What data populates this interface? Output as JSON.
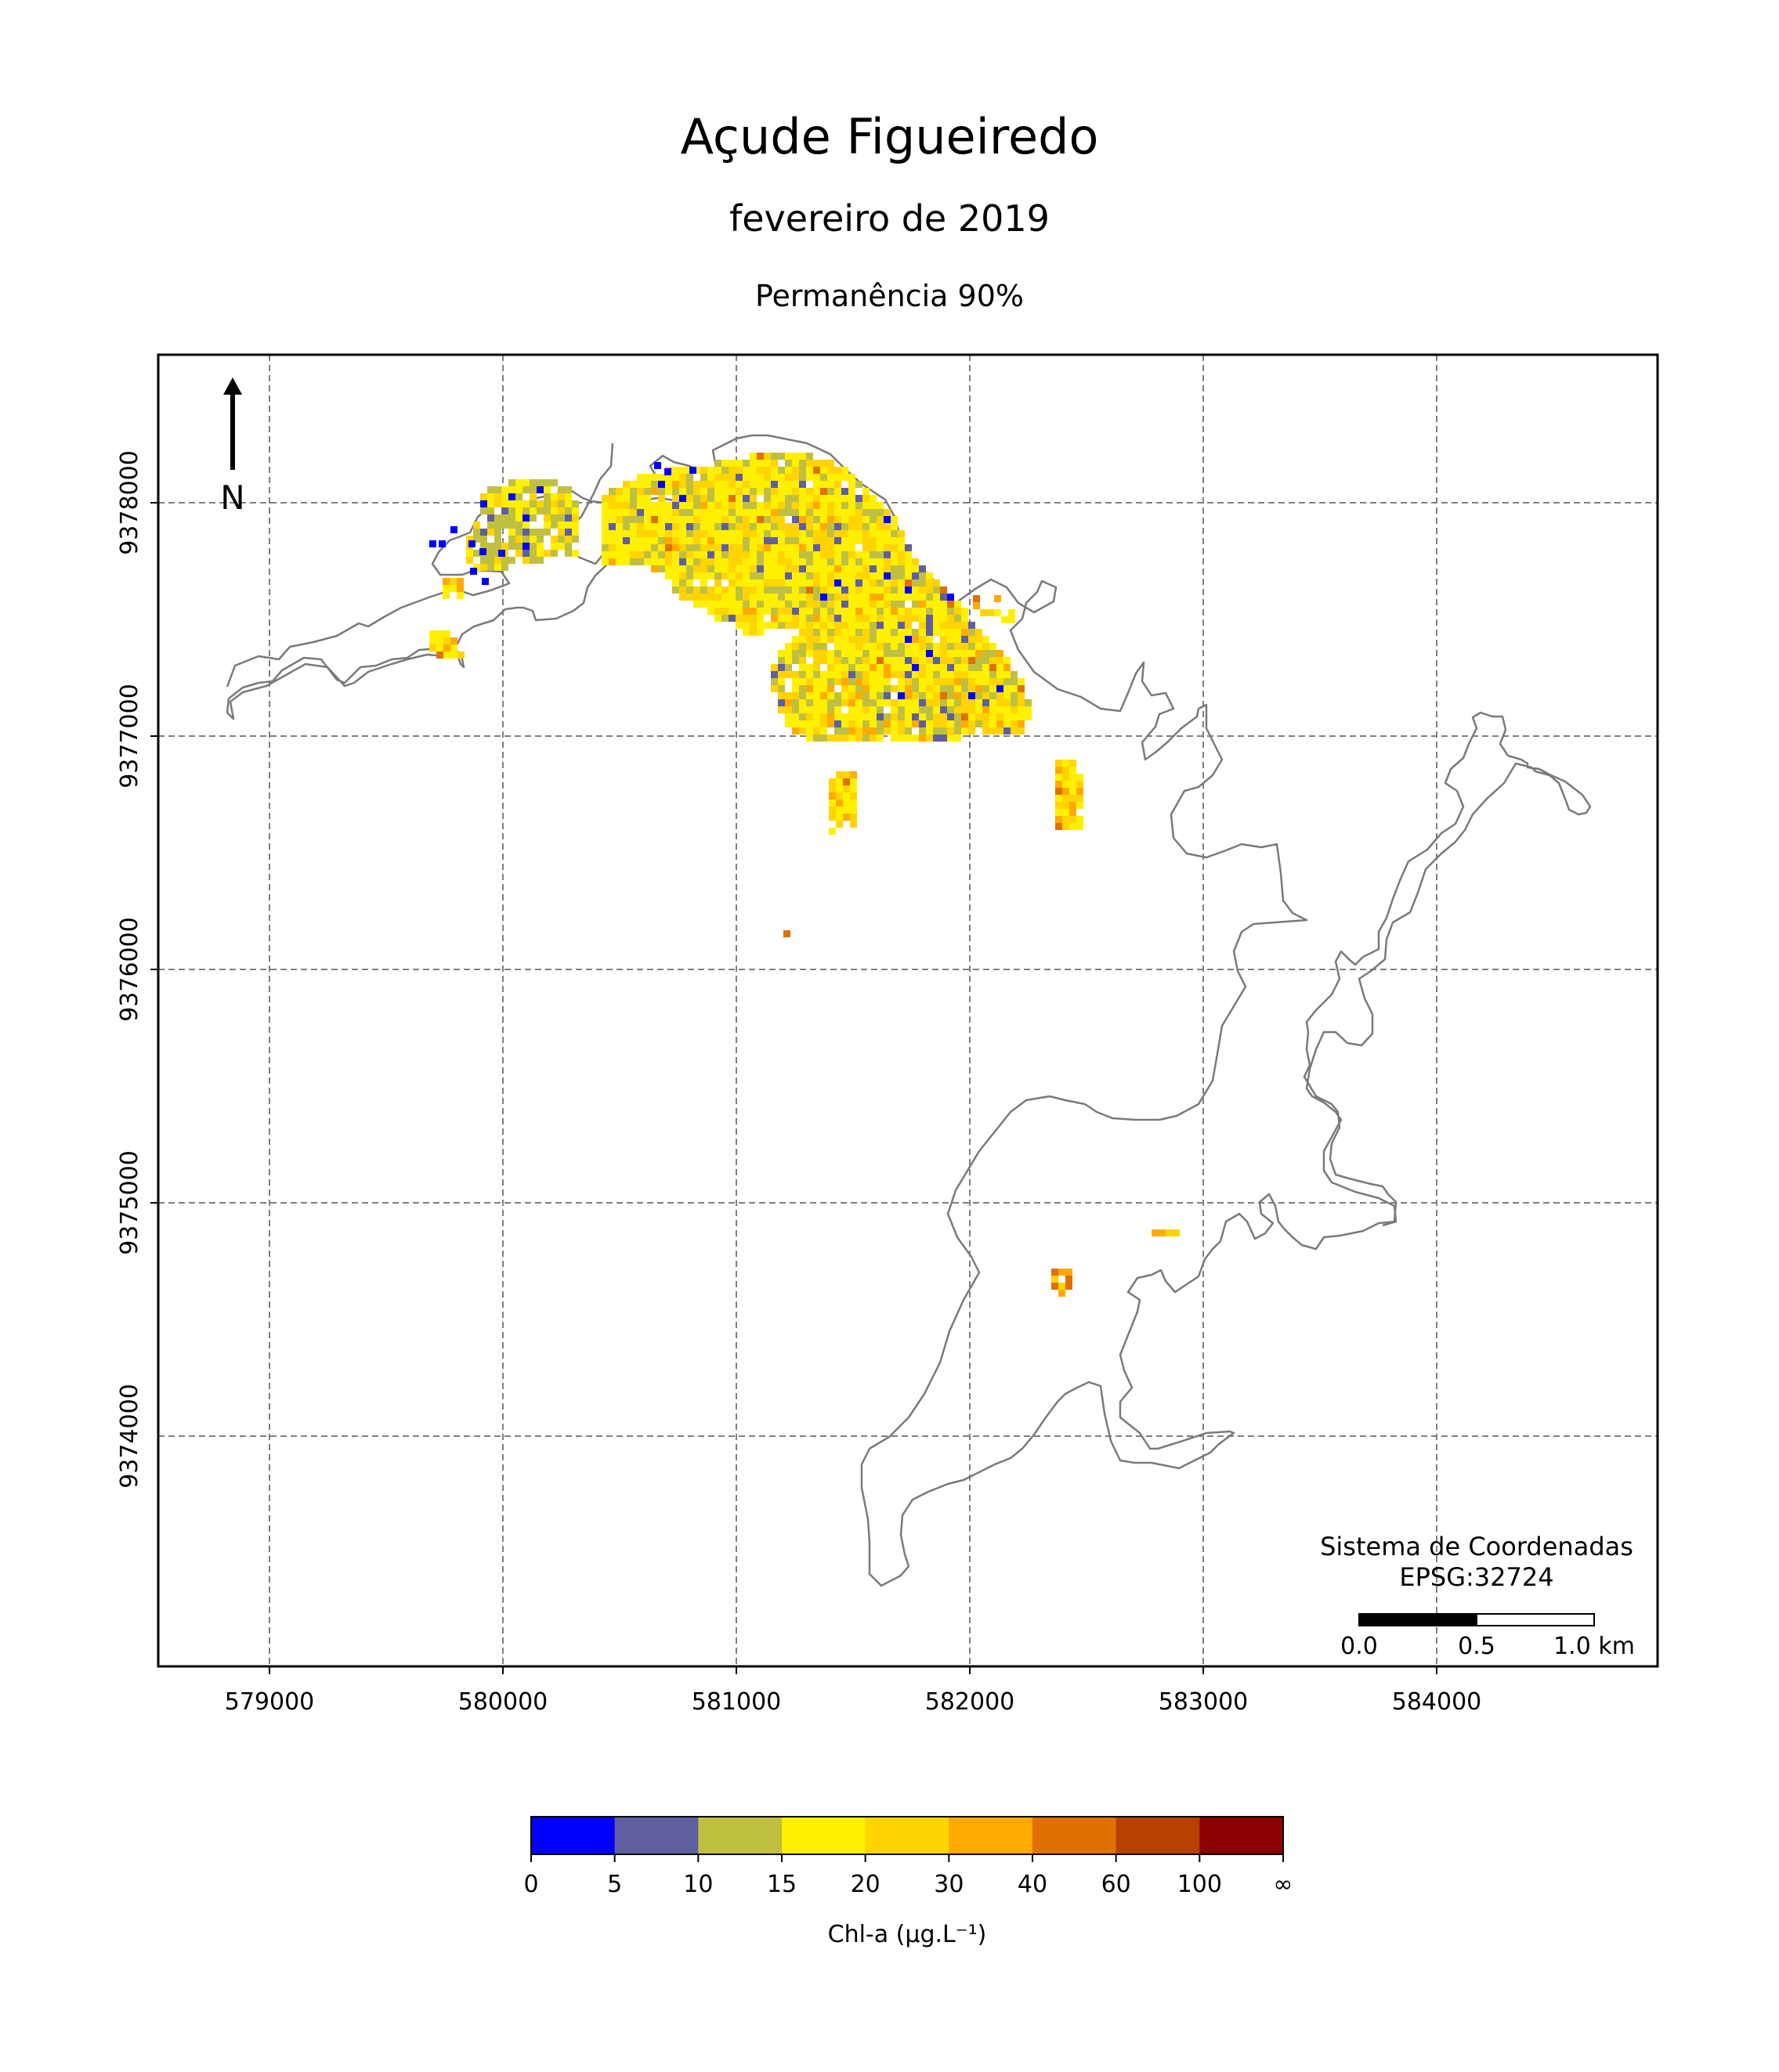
{
  "title": "Açude Figueiredo",
  "subtitle": "fevereiro de 2019",
  "subtitle2": "Permanência 90%",
  "north_label": "N",
  "x_ticks": [
    "579000",
    "580000",
    "581000",
    "582000",
    "583000",
    "584000"
  ],
  "y_ticks": [
    "9378000",
    "9377000",
    "9376000",
    "9375000",
    "9374000"
  ],
  "crs_line1": "Sistema de Coordenadas",
  "crs_line2": "EPSG:32724",
  "scalebar_labels": [
    "0.0",
    "0.5",
    "1.0 km"
  ],
  "colorbar": {
    "label": "Chl-a (μg.L⁻¹)",
    "ticks": [
      "0",
      "5",
      "10",
      "15",
      "20",
      "30",
      "40",
      "60",
      "100",
      "∞"
    ],
    "colors": [
      "#0000ff",
      "#5f5f9f",
      "#c0c040",
      "#fff000",
      "#ffd400",
      "#ffaa00",
      "#e07000",
      "#b84000",
      "#8b0000"
    ]
  },
  "colors": {
    "grid": "#808080",
    "outline": "#7a7a7a",
    "yellow": "#fff000",
    "gold": "#ffd400",
    "olive": "#c0c040",
    "purple": "#5f5f9f",
    "blue": "#0000ff",
    "orange": "#ffaa00",
    "dark_orange": "#e07000",
    "rust": "#b84000"
  }
}
